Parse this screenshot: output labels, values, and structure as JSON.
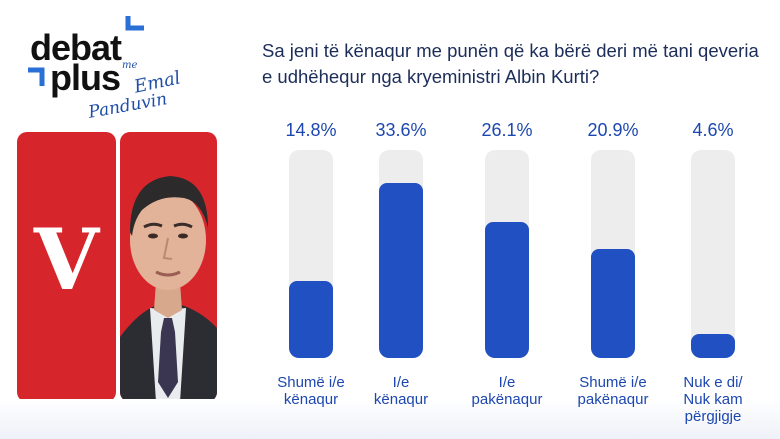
{
  "logo": {
    "line1": "debat",
    "line2": "plus",
    "signature_me": "me",
    "signature_first": "Emal",
    "signature_last": "Panduvin",
    "color_accent": "#2a6fd6"
  },
  "panel": {
    "mark": "V",
    "color": "#d7262b"
  },
  "chart_data": {
    "type": "bar",
    "title": "Sa jeni të kënaqur me punën që ka bërë deri më tani qeveria e udhëhequr nga kryeministri Albin Kurti?",
    "categories": [
      "Shumë i/e kënaqur",
      "I/e kënaqur",
      "I/e pakënaqur",
      "Shumë i/e pakënaqur",
      "Nuk e di/ Nuk kam përgjigje"
    ],
    "category_lines": [
      [
        "Shumë i/e",
        "kënaqur"
      ],
      [
        "I/e",
        "kënaqur"
      ],
      [
        "I/e",
        "pakënaqur"
      ],
      [
        "Shumë i/e",
        "pakënaqur"
      ],
      [
        "Nuk e di/",
        "Nuk kam",
        "përgjigje"
      ]
    ],
    "values": [
      14.8,
      33.6,
      26.1,
      20.9,
      4.6
    ],
    "value_labels": [
      "14.8%",
      "33.6%",
      "26.1%",
      "20.9%",
      "4.6%"
    ],
    "ylim": [
      0,
      40
    ],
    "bar_color": "#2150c2",
    "track_color": "#ededed",
    "grid": false
  }
}
